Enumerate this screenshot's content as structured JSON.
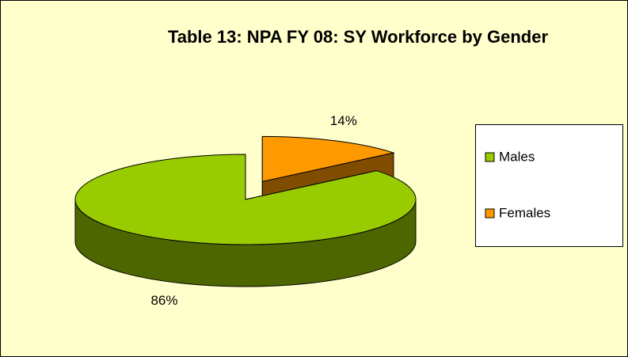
{
  "chart_data": {
    "type": "pie",
    "title": "Table 13: NPA FY 08: SY Workforce by Gender",
    "categories": [
      "Males",
      "Females"
    ],
    "values": [
      86,
      14
    ],
    "value_labels": [
      "86%",
      "14%"
    ],
    "colors": [
      "#99cc00",
      "#ff9900"
    ],
    "legend": "right"
  }
}
